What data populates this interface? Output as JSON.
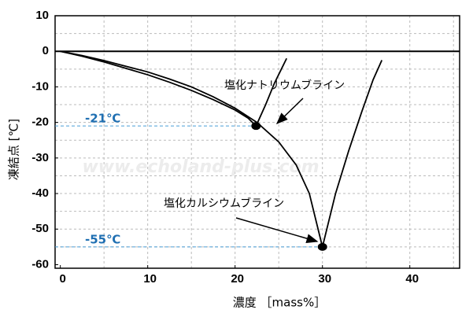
{
  "chart_data": {
    "type": "line",
    "y_label": "凍結点 [℃]",
    "x_label": "濃度 ［mass%］",
    "watermark": "www.echoland-plus.com",
    "xlim": [
      -0.6,
      45.7
    ],
    "ylim": [
      -61,
      10
    ],
    "xticks": [
      0,
      10,
      20,
      30,
      40
    ],
    "yticks": [
      10,
      0,
      -10,
      -20,
      -30,
      -40,
      -50,
      -60
    ],
    "xgrid": [
      5,
      10,
      15,
      20,
      25,
      30,
      35,
      40,
      45
    ],
    "ygrid": [
      5,
      -5,
      -10,
      -15,
      -20,
      -25,
      -30,
      -35,
      -40,
      -45,
      -50,
      -55
    ],
    "series": [
      {
        "name": "塩化ナトリウムブライン",
        "color": "#000000",
        "x": [
          0,
          2.5,
          5,
          7.5,
          10,
          12.5,
          15,
          17.5,
          20,
          21.5,
          22.4,
          23.5,
          24.5,
          25.3,
          25.9
        ],
        "values": [
          0,
          -1.4,
          -3,
          -4.8,
          -6.6,
          -8.7,
          -11,
          -13.6,
          -16.5,
          -18.8,
          -21,
          -15,
          -9,
          -5,
          -2
        ]
      },
      {
        "name": "塩化カルシウムブライン",
        "color": "#000000",
        "x": [
          0,
          2.5,
          5,
          7.5,
          10,
          12.5,
          15,
          17.5,
          20,
          22.5,
          25,
          27,
          28.5,
          30,
          31.5,
          33,
          34.5,
          35.8,
          36.8
        ],
        "values": [
          0,
          -1.2,
          -2.6,
          -4.2,
          -5.8,
          -7.8,
          -10,
          -12.8,
          -16,
          -20,
          -25.5,
          -32,
          -40,
          -55,
          -40,
          -28,
          -17,
          -8,
          -2.5
        ]
      }
    ],
    "points": {
      "x": [
        22.4,
        30
      ],
      "values": [
        -21,
        -55
      ]
    },
    "reference_lines": [
      {
        "value": -21,
        "label": "-21℃"
      },
      {
        "value": -55,
        "label": "-55℃"
      }
    ]
  }
}
